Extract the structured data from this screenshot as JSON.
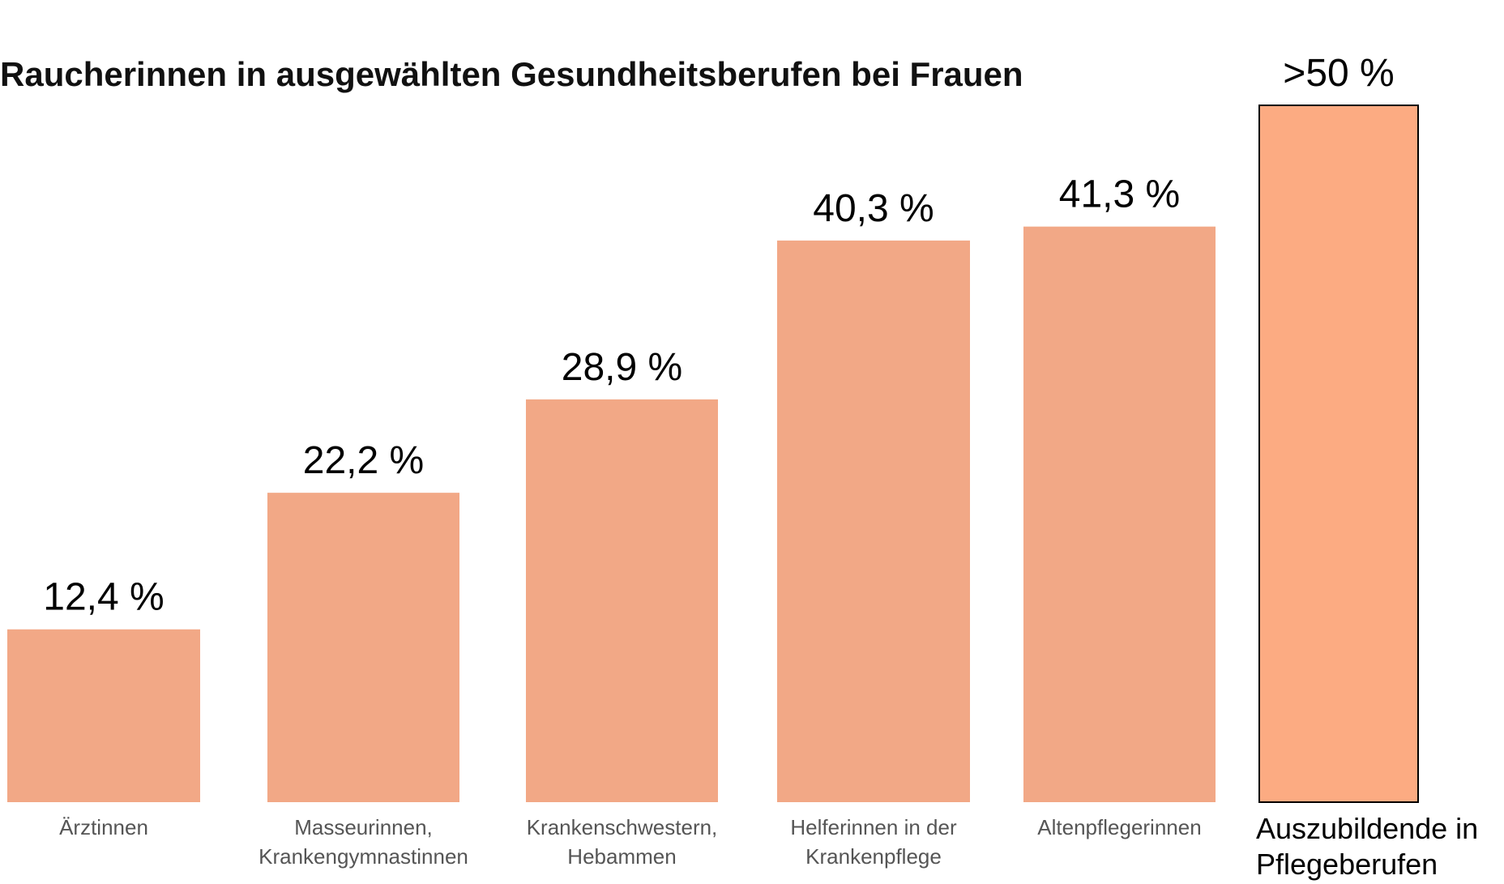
{
  "chart_data": {
    "type": "bar",
    "title": "Raucherinnen in ausgewählten Gesundheitsberufen bei Frauen",
    "categories": [
      [
        "Ärztinnen"
      ],
      [
        "Masseurinnen,",
        "Krankengymnastinnen"
      ],
      [
        "Krankenschwestern,",
        "Hebammen"
      ],
      [
        "Helferinnen in der",
        "Krankenpflege"
      ],
      [
        "Altenpflegerinnen"
      ],
      [
        "Auszubildende in",
        "Pflegeberufen"
      ]
    ],
    "values": [
      12.4,
      22.2,
      28.9,
      40.3,
      41.3,
      50
    ],
    "value_labels": [
      "12,4 %",
      "22,2 %",
      "28,9 %",
      "40,3 %",
      "41,3 %",
      ">50 %"
    ],
    "colors": [
      "#f2a886",
      "#f2a886",
      "#f2a886",
      "#f2a886",
      "#f2a886",
      "#fcab82"
    ],
    "ylim": [
      0,
      55
    ]
  }
}
